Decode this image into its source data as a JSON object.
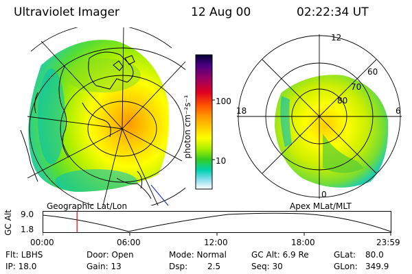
{
  "header": {
    "instrument": "Ultraviolet Imager",
    "date": "12 Aug 00",
    "time": "02:22:34 UT"
  },
  "panels": {
    "geographic_label": "Geographic Lat/Lon",
    "apex_label": "Apex MLat/MLT",
    "apex_lat_labels": [
      "80",
      "70",
      "60"
    ],
    "apex_mlt_labels": [
      "12",
      "18",
      "6",
      "0"
    ]
  },
  "colorbar": {
    "axis_label": "photon cm⁻²s⁻¹",
    "ticks": [
      "100",
      "10"
    ],
    "colors": [
      "#000033",
      "#4b0082",
      "#9b0060",
      "#e00020",
      "#ff5500",
      "#ff9900",
      "#ffcc00",
      "#ffff00",
      "#aaee00",
      "#33cc22",
      "#00d0b0",
      "#88ddee",
      "#ffffff"
    ]
  },
  "altitude_plot": {
    "ylabel": "GC Alt",
    "y_ticks": [
      "9.0",
      "1.8"
    ],
    "x_ticks": [
      "00:00",
      "06:00",
      "12:00",
      "18:00",
      "23:59"
    ],
    "marker_time_fraction": 0.099
  },
  "info": {
    "row1": {
      "filter": "Flt: LBHS",
      "door": "Door: Open",
      "mode": "Mode: Normal",
      "gc_alt": "GC Alt: 6.9 Re",
      "glat_key": "GLat:",
      "glat_val": "80.0"
    },
    "row2": {
      "ip": "IP: 18.0",
      "gain": "Gain: 13",
      "dsp_key": "Dsp:",
      "dsp_val": "2.5",
      "seq": "Seq: 30",
      "glon_key": "GLon:",
      "glon_val": "349.9"
    }
  }
}
